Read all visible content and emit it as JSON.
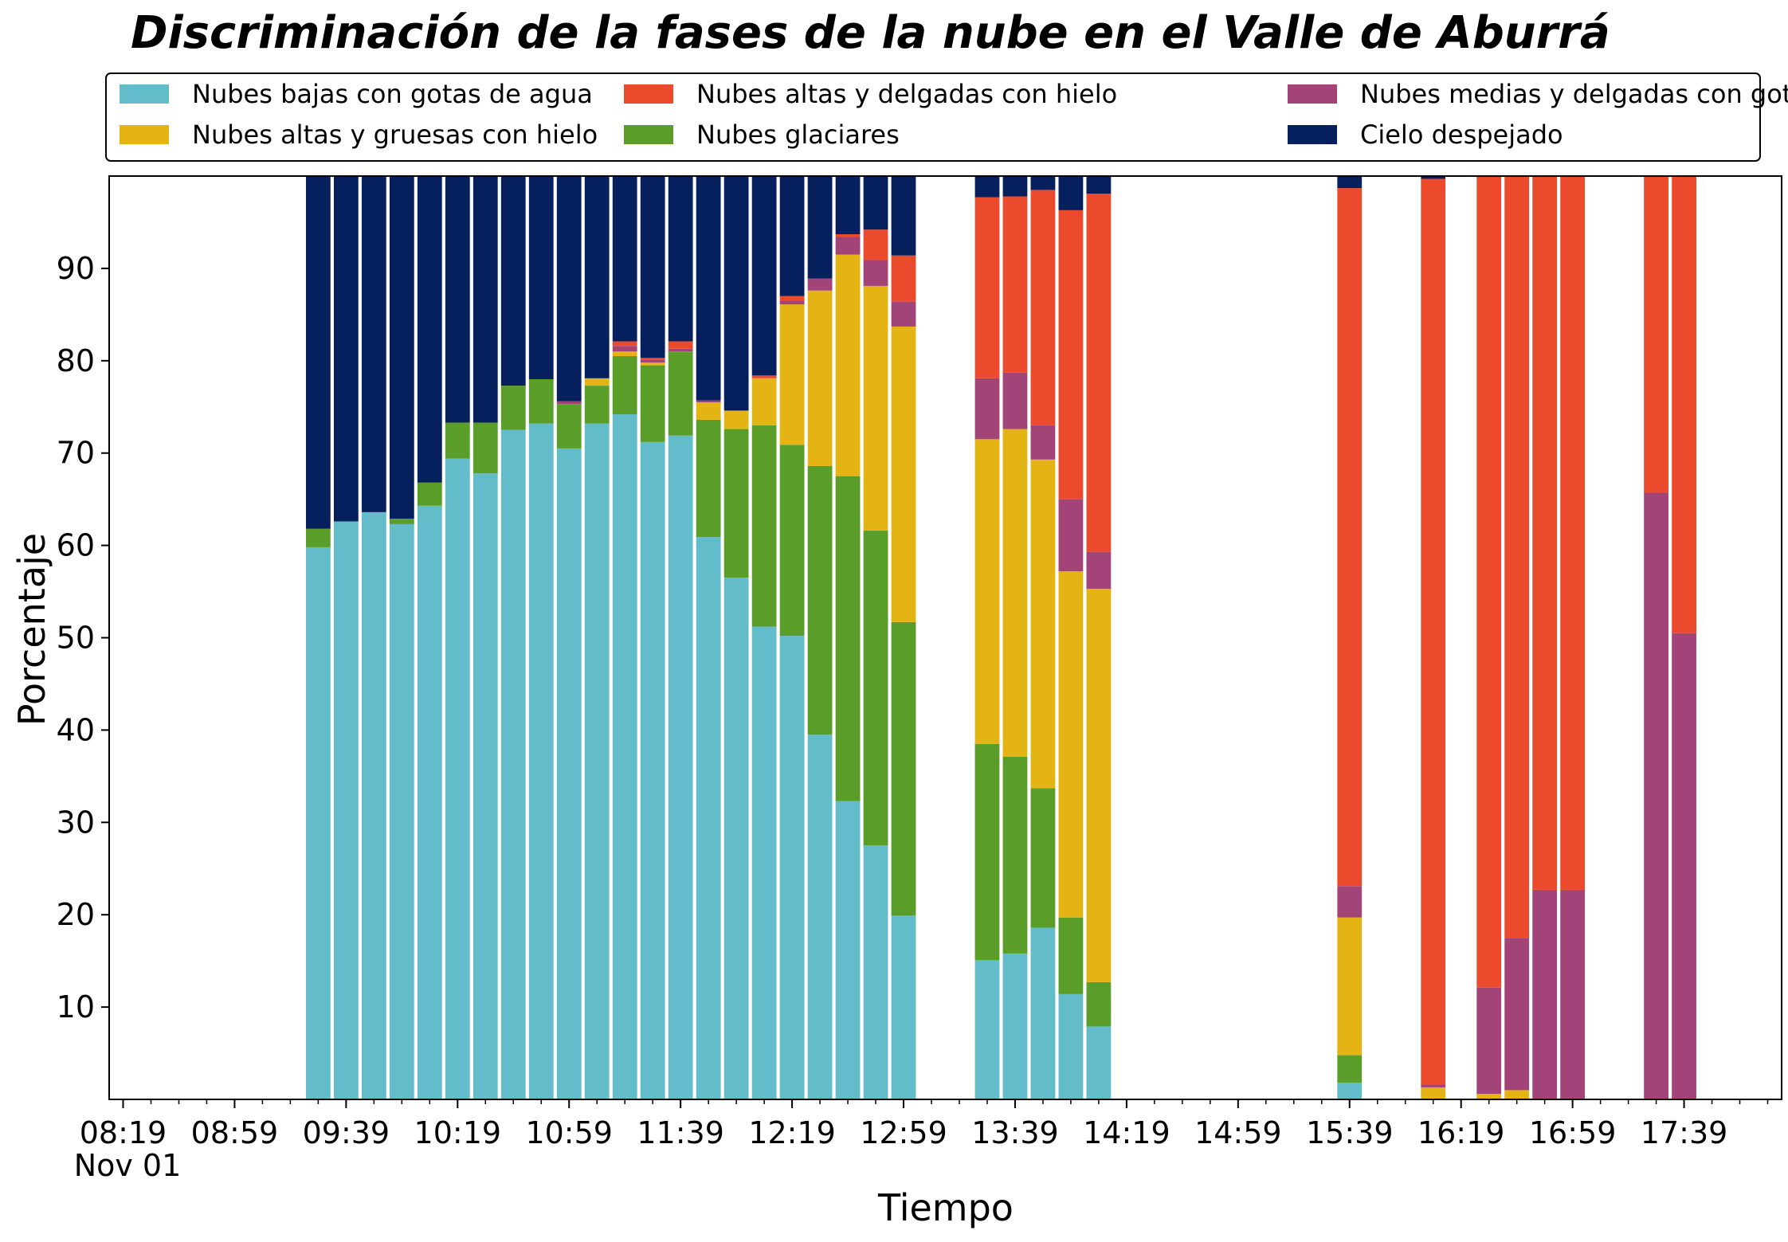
{
  "chart_data": {
    "type": "bar",
    "stacked": true,
    "title": "Discriminación de la fases de la nube en el Valle de Aburrá",
    "xlabel": "Tiempo",
    "ylabel": "Porcentaje",
    "ylim": [
      0,
      100
    ],
    "yticks": [
      10,
      20,
      30,
      40,
      50,
      60,
      70,
      80,
      90
    ],
    "xlim": [
      "08:14",
      "18:14"
    ],
    "xticks": [
      "08:19",
      "08:59",
      "09:39",
      "10:19",
      "10:59",
      "11:39",
      "12:19",
      "12:59",
      "13:39",
      "14:19",
      "14:59",
      "15:39",
      "16:19",
      "16:59",
      "17:39"
    ],
    "date_label": "Nov 01",
    "grid": false,
    "legend_position": "top",
    "legend_order": [
      0,
      2,
      4,
      1,
      3,
      5
    ],
    "x": [
      "09:29",
      "09:39",
      "09:49",
      "09:59",
      "10:09",
      "10:19",
      "10:29",
      "10:39",
      "10:49",
      "10:59",
      "11:09",
      "11:19",
      "11:29",
      "11:39",
      "11:49",
      "11:59",
      "12:09",
      "12:19",
      "12:29",
      "12:39",
      "12:49",
      "12:59",
      "13:29",
      "13:39",
      "13:49",
      "13:59",
      "14:09",
      "15:39",
      "16:09",
      "16:29",
      "16:39",
      "16:49",
      "16:59",
      "17:29",
      "17:39"
    ],
    "series": [
      {
        "name": "Nubes bajas con gotas de agua",
        "color": "#63bcc9",
        "values": [
          59.8,
          62.6,
          63.6,
          62.3,
          64.3,
          69.4,
          67.8,
          72.5,
          73.2,
          70.5,
          73.2,
          74.2,
          71.2,
          71.9,
          60.9,
          56.5,
          51.2,
          50.2,
          39.5,
          32.3,
          27.5,
          19.9,
          15.1,
          15.8,
          18.6,
          11.4,
          7.9,
          1.8,
          0,
          0,
          0,
          0,
          0,
          0,
          0
        ]
      },
      {
        "name": "Nubes glaciares",
        "color": "#5a9e29",
        "values": [
          2.0,
          0,
          0,
          0.6,
          2.5,
          3.9,
          5.5,
          4.8,
          4.8,
          4.8,
          4.1,
          6.3,
          8.3,
          9.1,
          12.7,
          16.1,
          21.8,
          20.7,
          29.1,
          35.2,
          34.1,
          31.8,
          23.4,
          21.3,
          15.1,
          8.3,
          4.8,
          3.0,
          0,
          0,
          0,
          0,
          0,
          0,
          0
        ]
      },
      {
        "name": "Nubes altas y gruesas con hielo",
        "color": "#e3b414",
        "values": [
          0,
          0,
          0,
          0,
          0,
          0,
          0,
          0,
          0,
          0,
          0.8,
          0.5,
          0.3,
          0,
          1.9,
          2.0,
          5.1,
          15.2,
          19.0,
          24.0,
          26.5,
          32.0,
          33.0,
          35.5,
          35.6,
          37.5,
          42.6,
          14.9,
          1.3,
          0.6,
          1.0,
          0,
          0,
          0,
          0
        ]
      },
      {
        "name": "Nubes medias y delgadas con gotas de agua",
        "color": "#a34479",
        "values": [
          0,
          0,
          0,
          0,
          0,
          0,
          0,
          0,
          0,
          0.3,
          0,
          0.6,
          0.3,
          0.3,
          0.2,
          0,
          0,
          0.4,
          1.3,
          1.9,
          2.8,
          2.7,
          6.6,
          6.1,
          3.7,
          7.8,
          4.0,
          3.4,
          0.3,
          11.5,
          16.5,
          22.7,
          22.7,
          65.7,
          50.5
        ]
      },
      {
        "name": "Nubes altas y delgadas con hielo",
        "color": "#ec4a2c",
        "values": [
          0,
          0,
          0,
          0,
          0,
          0,
          0,
          0,
          0,
          0,
          0,
          0.5,
          0.2,
          0.8,
          0,
          0,
          0.3,
          0.5,
          0,
          0.3,
          3.3,
          5.0,
          19.6,
          19.1,
          25.5,
          31.3,
          38.8,
          75.6,
          98.1,
          87.9,
          82.5,
          77.3,
          77.3,
          34.3,
          49.5
        ]
      },
      {
        "name": "Cielo despejado",
        "color": "#05205d",
        "values": [
          38.2,
          37.4,
          36.4,
          37.1,
          33.2,
          26.7,
          26.7,
          22.7,
          22.0,
          24.4,
          21.9,
          17.9,
          19.7,
          17.9,
          24.3,
          25.4,
          21.6,
          13.0,
          11.1,
          6.3,
          5.8,
          8.6,
          2.3,
          2.2,
          1.5,
          3.7,
          1.9,
          1.3,
          0.3,
          0,
          0,
          0,
          0,
          0,
          0
        ]
      }
    ]
  }
}
